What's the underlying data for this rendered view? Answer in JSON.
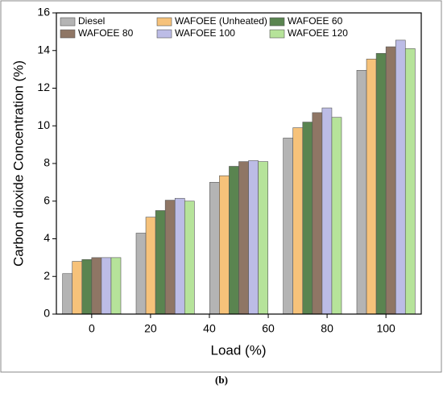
{
  "chart_data": {
    "type": "bar",
    "xlabel": "Load (%)",
    "ylabel": "Carbon dioxide Concentration (%)",
    "caption": "(b)",
    "x": [
      0,
      25,
      50,
      75,
      100
    ],
    "xlim": [
      -12,
      112
    ],
    "xticks": [
      0,
      20,
      40,
      60,
      80,
      100
    ],
    "ylim": [
      0,
      16
    ],
    "yticks": [
      0,
      2,
      4,
      6,
      8,
      10,
      12,
      14,
      16
    ],
    "series": [
      {
        "name": "Diesel",
        "color": "#b4b4b4",
        "values": [
          2.15,
          4.3,
          7.0,
          9.35,
          12.95
        ]
      },
      {
        "name": "WAFOEE (Unheated)",
        "color": "#f6c27a",
        "values": [
          2.8,
          5.15,
          7.35,
          9.9,
          13.55
        ]
      },
      {
        "name": "WAFOEE 60",
        "color": "#5a8450",
        "values": [
          2.9,
          5.5,
          7.85,
          10.2,
          13.85
        ]
      },
      {
        "name": "WAFOEE 80",
        "color": "#8f7665",
        "values": [
          3.0,
          6.05,
          8.1,
          10.7,
          14.2
        ]
      },
      {
        "name": "WAFOEE 100",
        "color": "#bcbce6",
        "values": [
          3.0,
          6.15,
          8.15,
          10.95,
          14.55
        ]
      },
      {
        "name": "WAFOEE 120",
        "color": "#b6e39a",
        "values": [
          3.0,
          6.0,
          8.1,
          10.45,
          14.1
        ]
      }
    ]
  }
}
